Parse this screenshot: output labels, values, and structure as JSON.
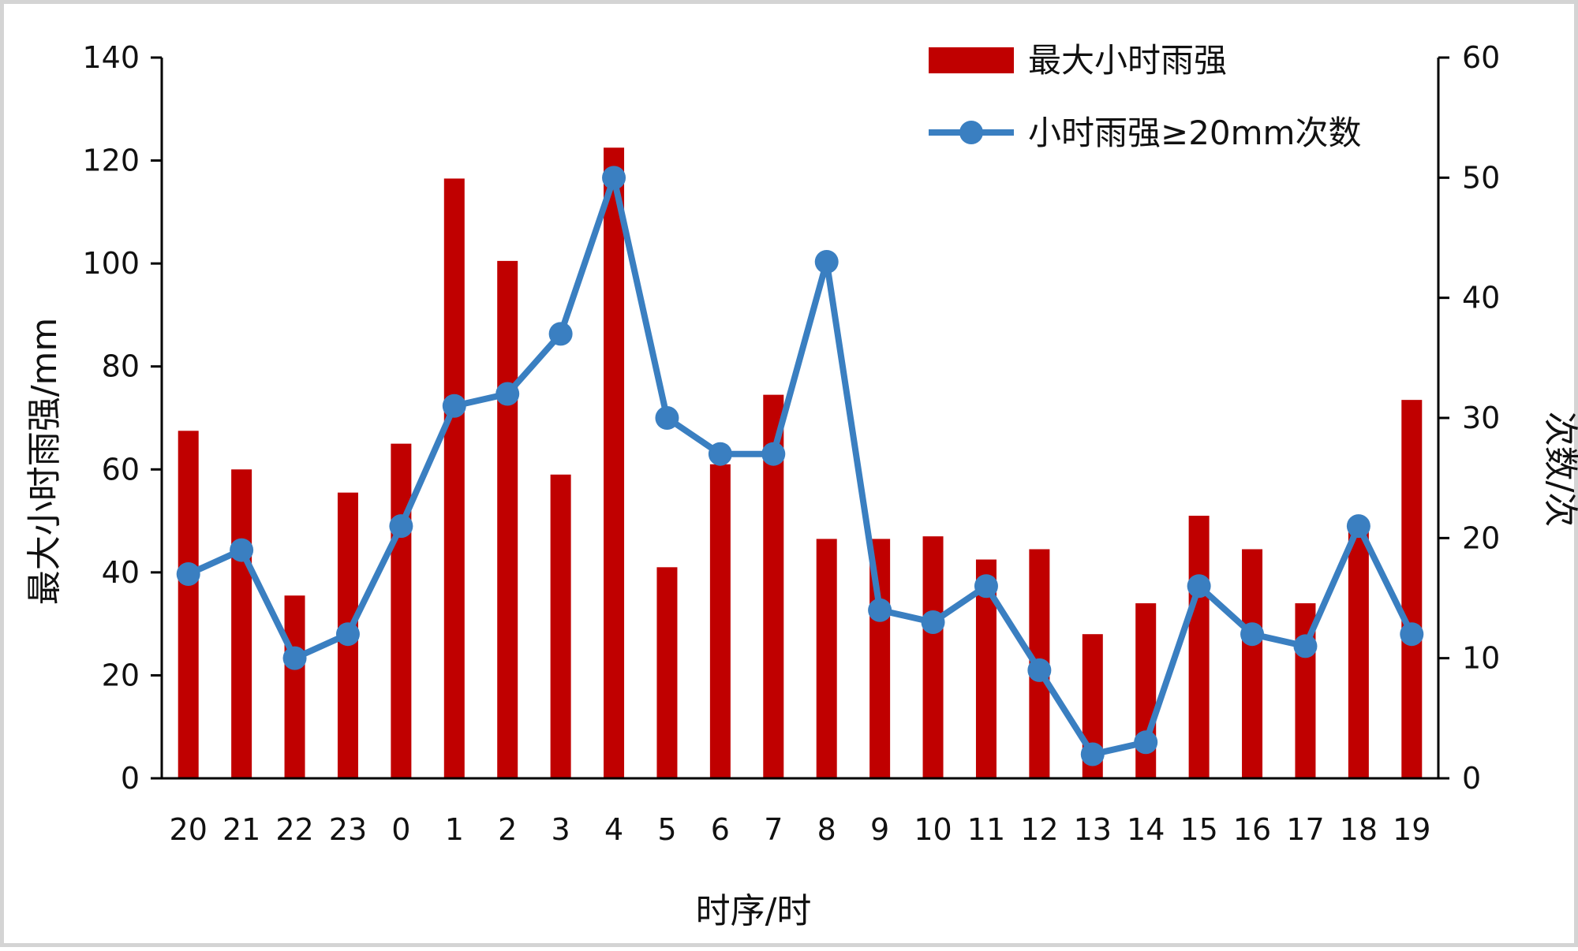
{
  "chart_data": {
    "type": "bar+line",
    "xlabel": "时序/时",
    "ylabel_left": "最大小时雨强/mm",
    "ylabel_right": "次数/次",
    "ylim_left": [
      0,
      140
    ],
    "ylim_right": [
      0,
      60
    ],
    "yticks_left": [
      0,
      20,
      40,
      60,
      80,
      100,
      120,
      140
    ],
    "yticks_right": [
      0,
      10,
      20,
      30,
      40,
      50,
      60
    ],
    "categories": [
      "20",
      "21",
      "22",
      "23",
      "0",
      "1",
      "2",
      "3",
      "4",
      "5",
      "6",
      "7",
      "8",
      "9",
      "10",
      "11",
      "12",
      "13",
      "14",
      "15",
      "16",
      "17",
      "18",
      "19"
    ],
    "series": [
      {
        "name": "最大小时雨强",
        "kind": "bar",
        "axis": "left",
        "color": "#c00000",
        "values": [
          67.5,
          60,
          35.5,
          55.5,
          65,
          116.5,
          100.5,
          59,
          122.5,
          41,
          61,
          74.5,
          46.5,
          46.5,
          47,
          42.5,
          44.5,
          28,
          34,
          51,
          44.5,
          34,
          49,
          73.5
        ]
      },
      {
        "name": "小时雨强≥20mm次数",
        "kind": "line",
        "axis": "right",
        "color": "#3a7fc1",
        "values": [
          17,
          19,
          10,
          12,
          21,
          31,
          32,
          37,
          50,
          30,
          27,
          27,
          43,
          14,
          13,
          16,
          9,
          2,
          3,
          16,
          12,
          11,
          21,
          12
        ]
      }
    ],
    "legend_position": "top-right",
    "grid": false
  }
}
